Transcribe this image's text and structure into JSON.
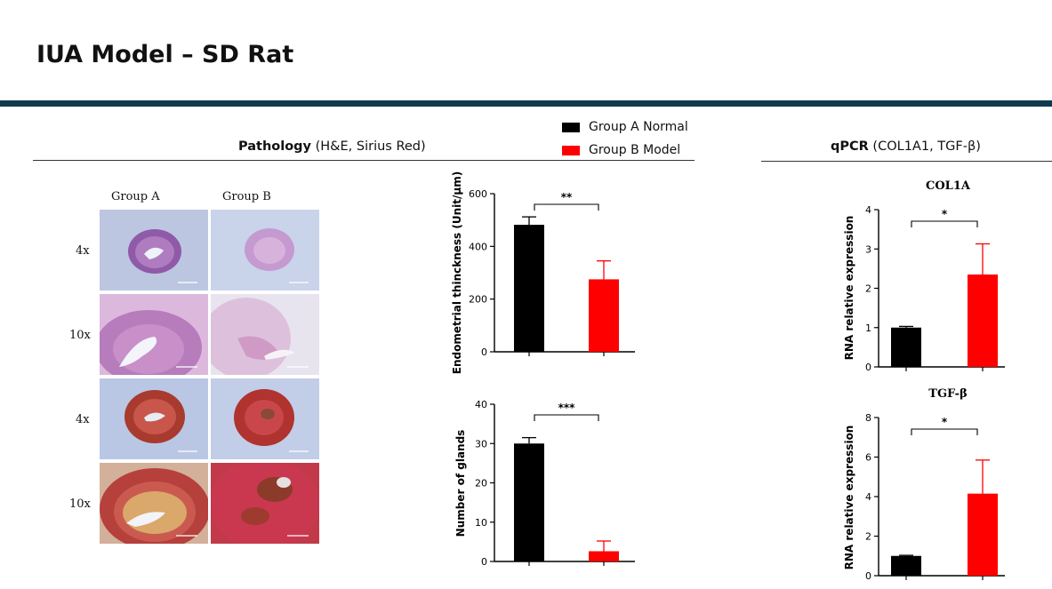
{
  "slide": {
    "title": "IUA Model – SD Rat",
    "accent_color": "#0f3a4d"
  },
  "pathology": {
    "title_bold": "Pathology",
    "title_rest": " (H&E, Sirius Red)",
    "col_labels": [
      "Group A",
      "Group B"
    ],
    "row_labels": [
      "4x",
      "10x",
      "4x",
      "10x"
    ],
    "stains": [
      "H&E",
      "H&E",
      "Sirius Red",
      "Sirius Red"
    ]
  },
  "qpcr": {
    "title_bold": "qPCR",
    "title_rest": " (COL1A1, TGF-β)"
  },
  "legend": [
    {
      "label": "Group A Normal",
      "color": "#000000"
    },
    {
      "label": "Group B Model",
      "color": "#ff0000"
    }
  ],
  "chart_data": [
    {
      "type": "bar",
      "title": "",
      "ylabel": "Endometrial thinckness (Unit/μm)",
      "ylim": [
        0,
        600
      ],
      "yticks": [
        0,
        200,
        400,
        600
      ],
      "series": [
        {
          "group": "Group A Normal",
          "values": [
            482
          ],
          "error": [
            30
          ],
          "color": "#000000"
        },
        {
          "group": "Group B Model",
          "values": [
            275
          ],
          "error": [
            70
          ],
          "color": "#ff0000"
        }
      ],
      "significance": "**"
    },
    {
      "type": "bar",
      "title": "",
      "ylabel": "Number of glands",
      "ylim": [
        0,
        40
      ],
      "yticks": [
        0,
        10,
        20,
        30,
        40
      ],
      "series": [
        {
          "group": "Group A Normal",
          "values": [
            30
          ],
          "error": [
            1.5
          ],
          "color": "#000000"
        },
        {
          "group": "Group B Model",
          "values": [
            2.6
          ],
          "error": [
            2.6
          ],
          "color": "#ff0000"
        }
      ],
      "significance": "***"
    },
    {
      "type": "bar",
      "title": "COL1A",
      "ylabel": "RNA relative expression",
      "ylim": [
        0,
        4
      ],
      "yticks": [
        0,
        1,
        2,
        3,
        4
      ],
      "series": [
        {
          "group": "Group A Normal",
          "values": [
            1.0
          ],
          "error": [
            0.03
          ],
          "color": "#000000"
        },
        {
          "group": "Group B Model",
          "values": [
            2.35
          ],
          "error": [
            0.78
          ],
          "color": "#ff0000"
        }
      ],
      "significance": "*"
    },
    {
      "type": "bar",
      "title": "TGF-β",
      "ylabel": "RNA relative expression",
      "ylim": [
        0,
        8
      ],
      "yticks": [
        0,
        2,
        4,
        6,
        8
      ],
      "series": [
        {
          "group": "Group A Normal",
          "values": [
            1.0
          ],
          "error": [
            0.03
          ],
          "color": "#000000"
        },
        {
          "group": "Group B Model",
          "values": [
            4.15
          ],
          "error": [
            1.7
          ],
          "color": "#ff0000"
        }
      ],
      "significance": "*"
    }
  ]
}
